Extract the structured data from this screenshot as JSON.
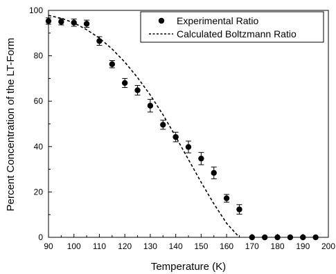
{
  "chart_data": {
    "type": "scatter",
    "xlabel": "Temperature (K)",
    "ylabel": "Percent Concentration of the LT-Form",
    "xlim": [
      90,
      200
    ],
    "ylim": [
      0,
      100
    ],
    "xticks": [
      90,
      100,
      110,
      120,
      130,
      140,
      150,
      160,
      170,
      180,
      190,
      200
    ],
    "yticks": [
      0,
      20,
      40,
      60,
      80,
      100
    ],
    "grid": false,
    "legend_position": "top-right",
    "series": [
      {
        "name": "Experimental Ratio",
        "kind": "scatter-with-error-bars",
        "color": "#000000",
        "x": [
          90,
          95,
          100,
          105,
          110,
          115,
          120,
          125,
          130,
          135,
          140,
          145,
          150,
          155,
          160,
          165,
          170,
          175,
          180,
          185,
          190,
          195
        ],
        "y": [
          95.3,
          95.0,
          94.6,
          94.1,
          86.5,
          76.3,
          68.0,
          64.8,
          58.0,
          49.6,
          44.2,
          39.8,
          34.7,
          28.4,
          17.2,
          12.3,
          0,
          0,
          0,
          0,
          0,
          0
        ],
        "error": [
          1.4,
          1.4,
          1.6,
          1.6,
          1.9,
          1.6,
          2.0,
          2.1,
          2.8,
          2.0,
          2.1,
          2.6,
          2.7,
          2.6,
          1.7,
          2.1,
          0.3,
          0.3,
          0.3,
          0.3,
          0.3,
          0.3
        ]
      },
      {
        "name": "Calculated Boltzmann Ratio",
        "kind": "dashed-line",
        "color": "#000000",
        "x": [
          90,
          95,
          100,
          105,
          110,
          115,
          120,
          125,
          130,
          135,
          140,
          145,
          150,
          155,
          160,
          165
        ],
        "y": [
          97.8,
          96.5,
          94.5,
          91.5,
          87.8,
          83.0,
          77.2,
          70.4,
          62.7,
          54.0,
          44.4,
          34.3,
          24.2,
          14.8,
          6.2,
          0
        ]
      }
    ]
  }
}
